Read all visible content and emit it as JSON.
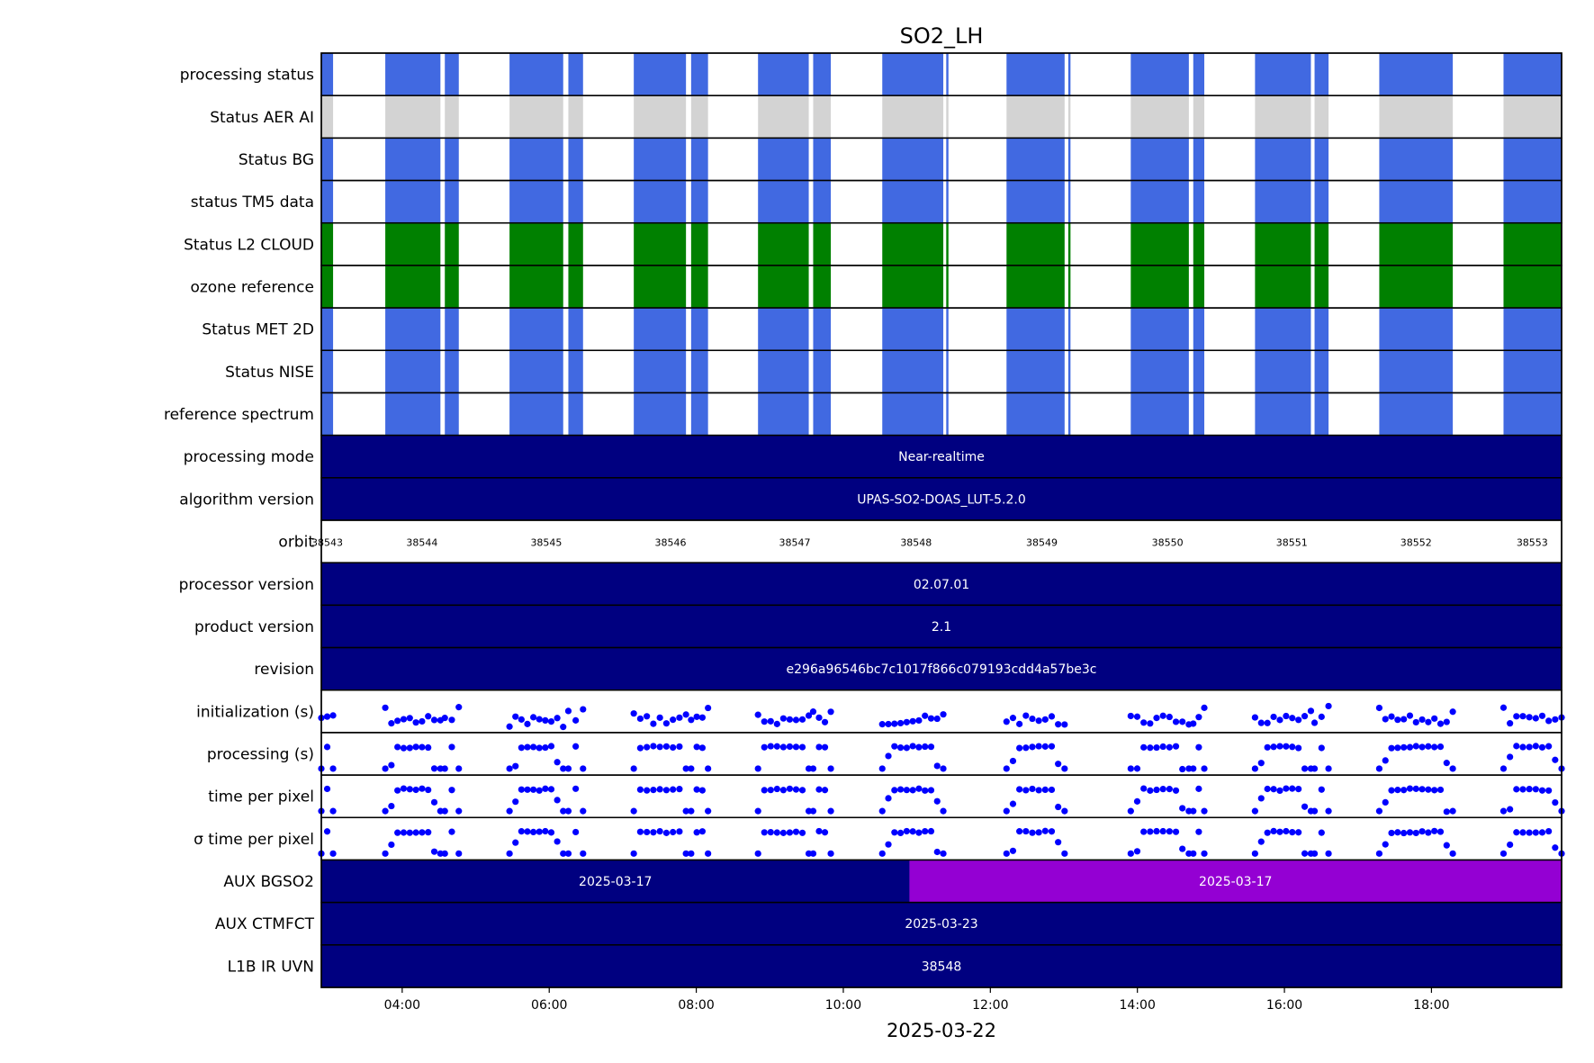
{
  "chart_data": {
    "type": "timeline",
    "title": "SO2_LH",
    "xlabel": "2025-03-22",
    "x_range_hours": [
      2.9,
      19.77
    ],
    "x_ticks": [
      "04:00",
      "06:00",
      "08:00",
      "10:00",
      "12:00",
      "14:00",
      "16:00",
      "18:00"
    ],
    "x_tick_hours": [
      4,
      6,
      8,
      10,
      12,
      14,
      16,
      18
    ],
    "colors": {
      "status_blue": "#4169e1",
      "status_grey": "#d3d3d3",
      "status_green": "#008000",
      "navy": "#000080",
      "purple": "#9400d3",
      "marker": "#0000ff"
    },
    "coverage_segments_hours": [
      [
        2.9,
        3.06
      ],
      [
        3.77,
        4.52
      ],
      [
        4.58,
        4.77
      ],
      [
        5.46,
        6.19
      ],
      [
        6.26,
        6.46
      ],
      [
        7.15,
        7.86
      ],
      [
        7.93,
        8.16
      ],
      [
        8.84,
        9.53
      ],
      [
        9.59,
        9.83
      ],
      [
        10.53,
        11.36
      ],
      [
        11.4,
        11.43
      ],
      [
        12.22,
        13.01
      ],
      [
        13.06,
        13.09
      ],
      [
        13.91,
        14.7
      ],
      [
        14.76,
        14.91
      ],
      [
        15.6,
        16.36
      ],
      [
        16.41,
        16.6
      ],
      [
        17.29,
        18.29
      ],
      [
        18.98,
        19.77
      ]
    ],
    "rows": [
      {
        "label": "processing status",
        "kind": "status",
        "color": "status_blue"
      },
      {
        "label": "Status AER AI",
        "kind": "status",
        "color": "status_grey"
      },
      {
        "label": "Status BG",
        "kind": "status",
        "color": "status_blue"
      },
      {
        "label": "status TM5 data",
        "kind": "status",
        "color": "status_blue"
      },
      {
        "label": "Status L2  CLOUD",
        "kind": "status",
        "color": "status_green"
      },
      {
        "label": "ozone reference",
        "kind": "status",
        "color": "status_green"
      },
      {
        "label": "Status MET 2D",
        "kind": "status",
        "color": "status_blue"
      },
      {
        "label": "Status NISE",
        "kind": "status",
        "color": "status_blue"
      },
      {
        "label": "reference spectrum",
        "kind": "status",
        "color": "status_blue"
      },
      {
        "label": "processing mode",
        "kind": "bar",
        "segments": [
          {
            "start": 2.9,
            "end": 19.77,
            "color": "navy",
            "text": "Near-realtime"
          }
        ]
      },
      {
        "label": "algorithm version",
        "kind": "bar",
        "segments": [
          {
            "start": 2.9,
            "end": 19.77,
            "color": "navy",
            "text": "UPAS-SO2-DOAS_LUT-5.2.0"
          }
        ]
      },
      {
        "label": "orbit",
        "kind": "orbit",
        "orbits": [
          {
            "hour": 2.98,
            "text": "38543"
          },
          {
            "hour": 4.27,
            "text": "38544"
          },
          {
            "hour": 5.96,
            "text": "38545"
          },
          {
            "hour": 7.65,
            "text": "38546"
          },
          {
            "hour": 9.34,
            "text": "38547"
          },
          {
            "hour": 10.99,
            "text": "38548"
          },
          {
            "hour": 12.7,
            "text": "38549"
          },
          {
            "hour": 14.41,
            "text": "38550"
          },
          {
            "hour": 16.1,
            "text": "38551"
          },
          {
            "hour": 17.79,
            "text": "38552"
          },
          {
            "hour": 19.37,
            "text": "38553"
          }
        ]
      },
      {
        "label": "processor version",
        "kind": "bar",
        "segments": [
          {
            "start": 2.9,
            "end": 19.77,
            "color": "navy",
            "text": "02.07.01"
          }
        ]
      },
      {
        "label": "product version",
        "kind": "bar",
        "segments": [
          {
            "start": 2.9,
            "end": 19.77,
            "color": "navy",
            "text": "2.1"
          }
        ]
      },
      {
        "label": "revision",
        "kind": "bar",
        "segments": [
          {
            "start": 2.9,
            "end": 19.77,
            "color": "navy",
            "text": "e296a96546bc7c1017f866c079193cdd4a57be3c"
          }
        ]
      },
      {
        "label": "initialization (s)",
        "kind": "scatter",
        "pattern": "wavy"
      },
      {
        "label": "processing (s)",
        "kind": "scatter",
        "pattern": "arch"
      },
      {
        "label": "time per pixel",
        "kind": "scatter",
        "pattern": "arch"
      },
      {
        "label": "σ time per pixel",
        "kind": "scatter",
        "pattern": "arch"
      },
      {
        "label": "AUX BGSO2",
        "kind": "bar",
        "segments": [
          {
            "start": 2.9,
            "end": 10.9,
            "color": "navy",
            "text": "2025-03-17"
          },
          {
            "start": 10.9,
            "end": 19.77,
            "color": "purple",
            "text": "2025-03-17"
          }
        ]
      },
      {
        "label": "AUX CTMFCT",
        "kind": "bar",
        "segments": [
          {
            "start": 2.9,
            "end": 19.77,
            "color": "navy",
            "text": "2025-03-23"
          }
        ]
      },
      {
        "label": "L1B IR UVN",
        "kind": "bar",
        "segments": [
          {
            "start": 2.9,
            "end": 19.77,
            "color": "navy",
            "text": "38548"
          }
        ]
      }
    ]
  }
}
